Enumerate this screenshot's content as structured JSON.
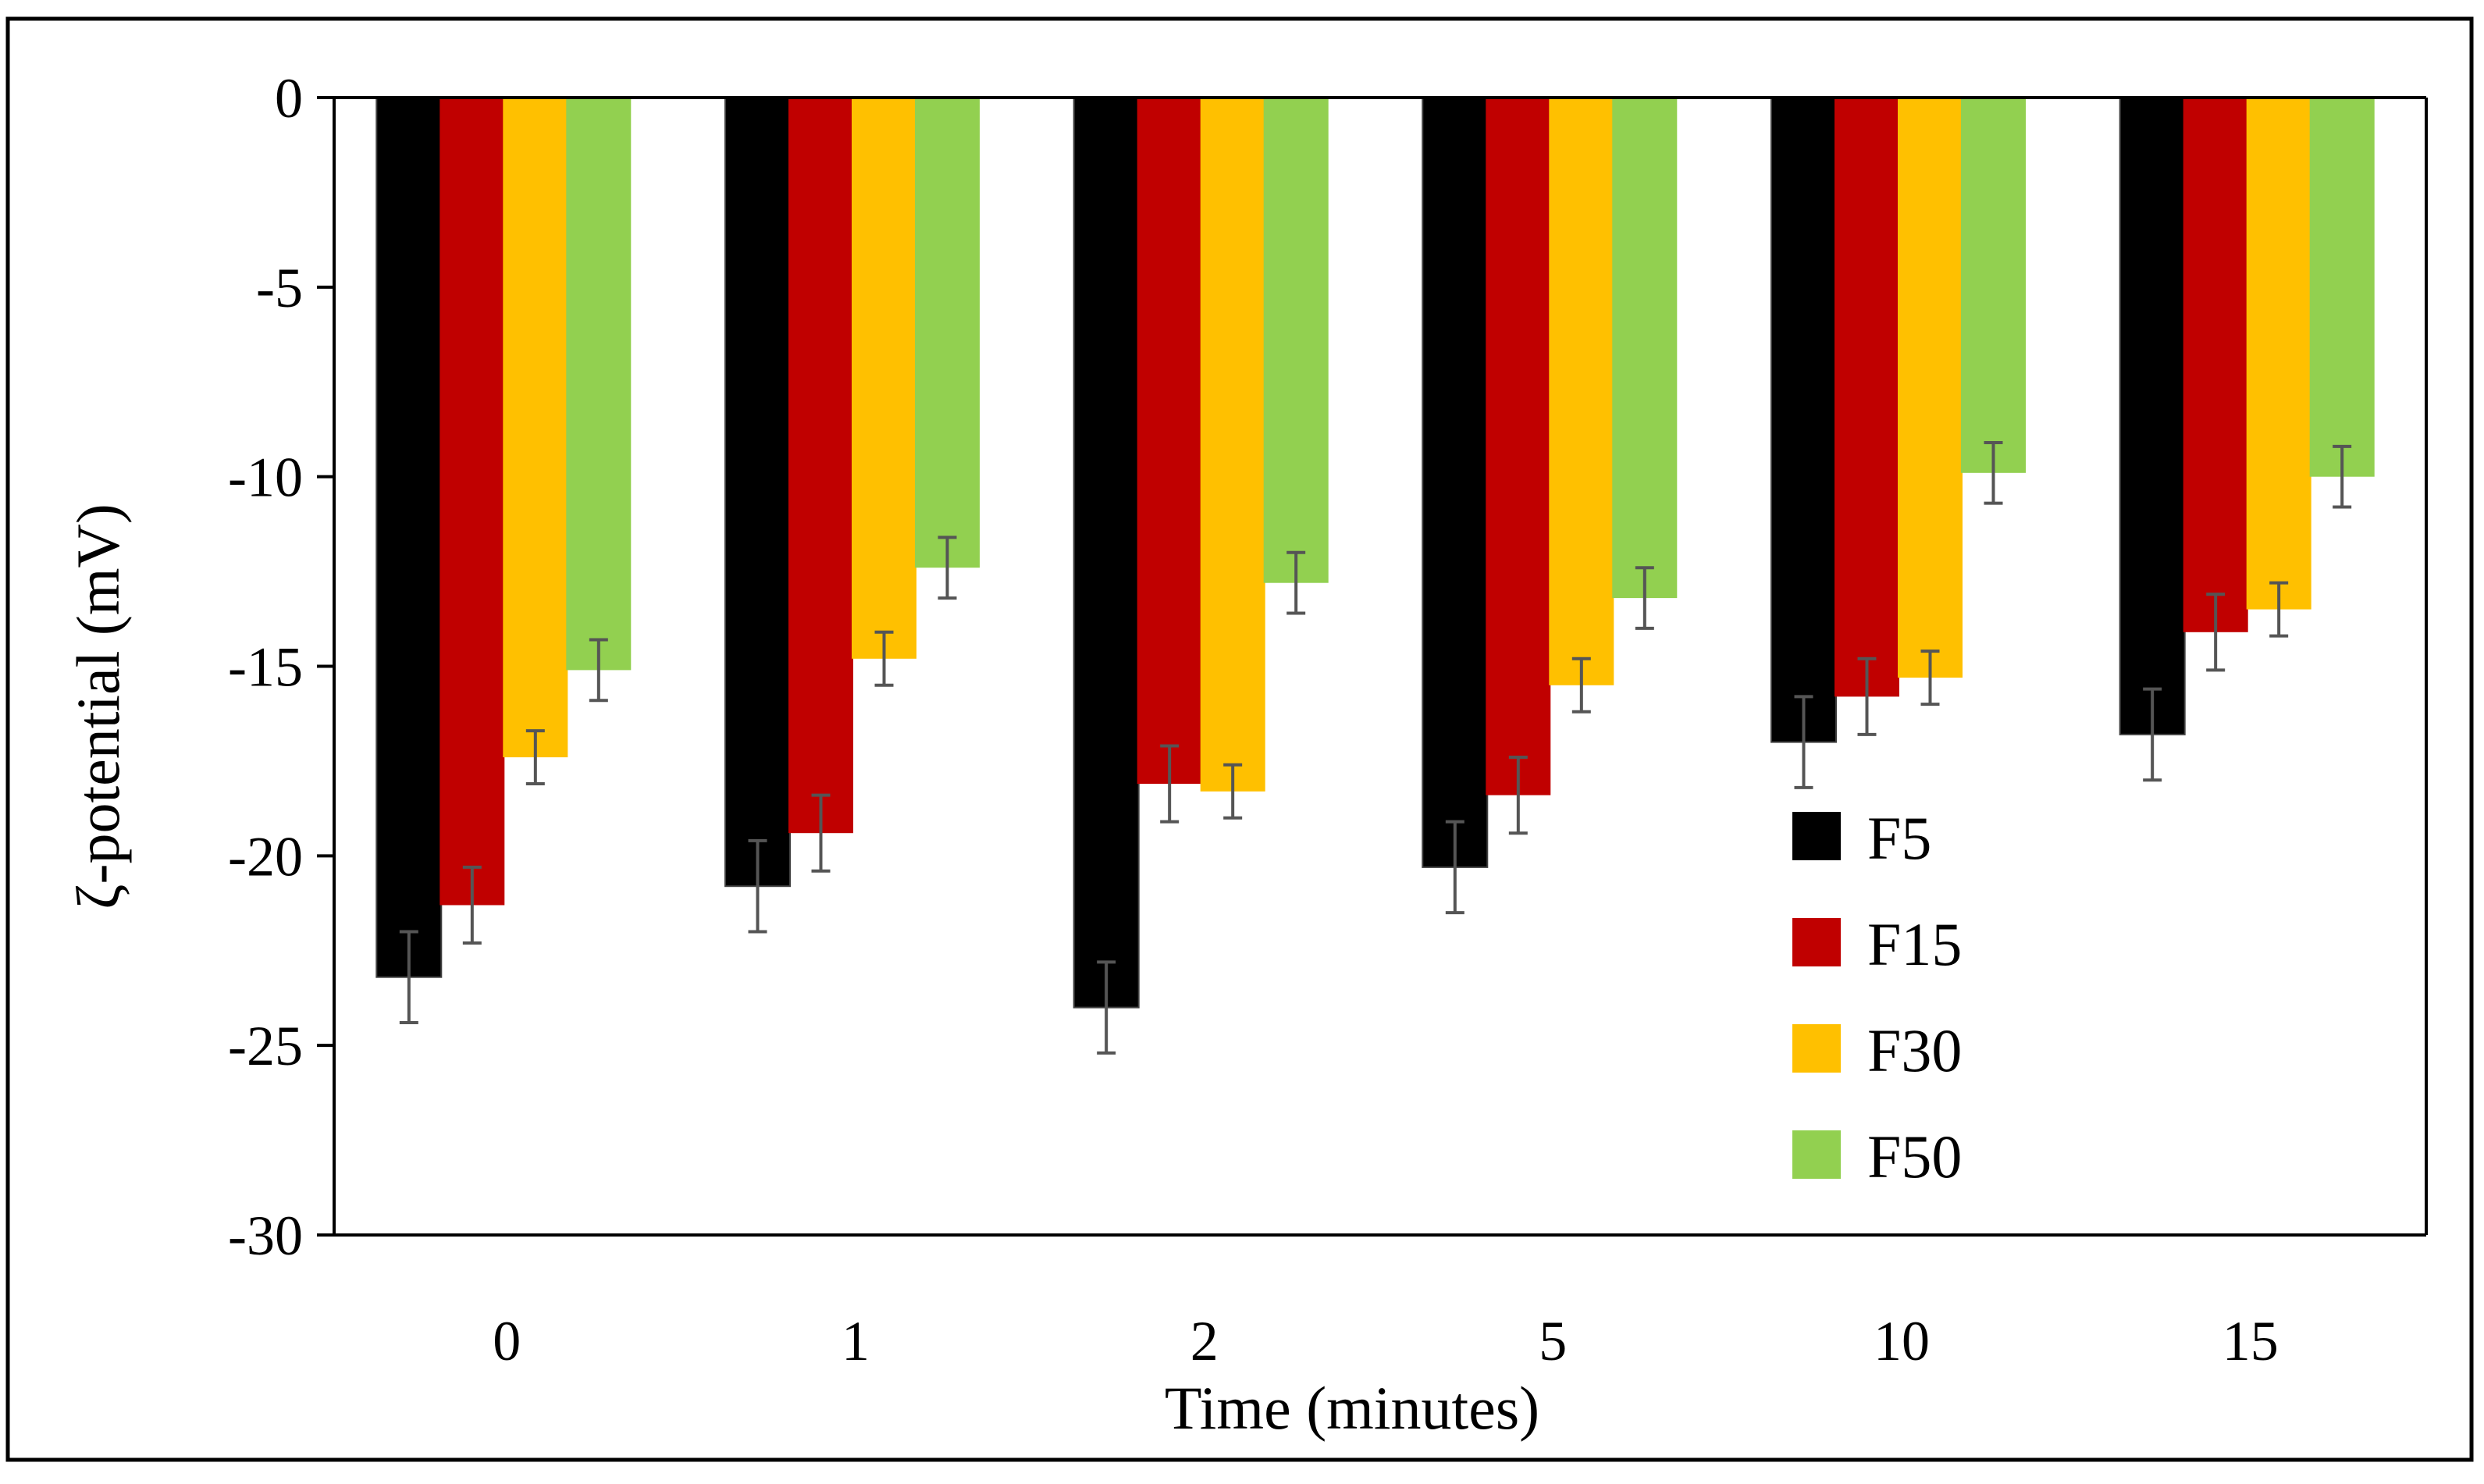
{
  "chart_data": {
    "type": "bar",
    "title": "",
    "xlabel": "Time (minutes)",
    "ylabel": "ζ-potential (mV)",
    "categories": [
      "0",
      "1",
      "2",
      "5",
      "10",
      "15"
    ],
    "ylim": [
      -30,
      0
    ],
    "yticks": [
      0,
      -5,
      -10,
      -15,
      -20,
      -25,
      -30
    ],
    "ytick_labels": [
      "0",
      "-5",
      "-10",
      "-15",
      "-20",
      "-25",
      "-30"
    ],
    "grid": false,
    "legend_position": "bottom-right",
    "series": [
      {
        "name": "F5",
        "color": "#000000",
        "values": [
          -23.2,
          -20.8,
          -24.0,
          -20.3,
          -17.0,
          -16.8
        ],
        "errors": [
          1.2,
          1.2,
          1.2,
          1.2,
          1.2,
          1.2
        ]
      },
      {
        "name": "F15",
        "color": "#c00000",
        "values": [
          -21.3,
          -19.4,
          -18.1,
          -18.4,
          -15.8,
          -14.1
        ],
        "errors": [
          1.0,
          1.0,
          1.0,
          1.0,
          1.0,
          1.0
        ]
      },
      {
        "name": "F30",
        "color": "#ffc000",
        "values": [
          -17.4,
          -14.8,
          -18.3,
          -15.5,
          -15.3,
          -13.5
        ],
        "errors": [
          0.7,
          0.7,
          0.7,
          0.7,
          0.7,
          0.7
        ]
      },
      {
        "name": "F50",
        "color": "#92d050",
        "values": [
          -15.1,
          -12.4,
          -12.8,
          -13.2,
          -9.9,
          -10.0
        ],
        "errors": [
          0.8,
          0.8,
          0.8,
          0.8,
          0.8,
          0.8
        ]
      }
    ]
  }
}
